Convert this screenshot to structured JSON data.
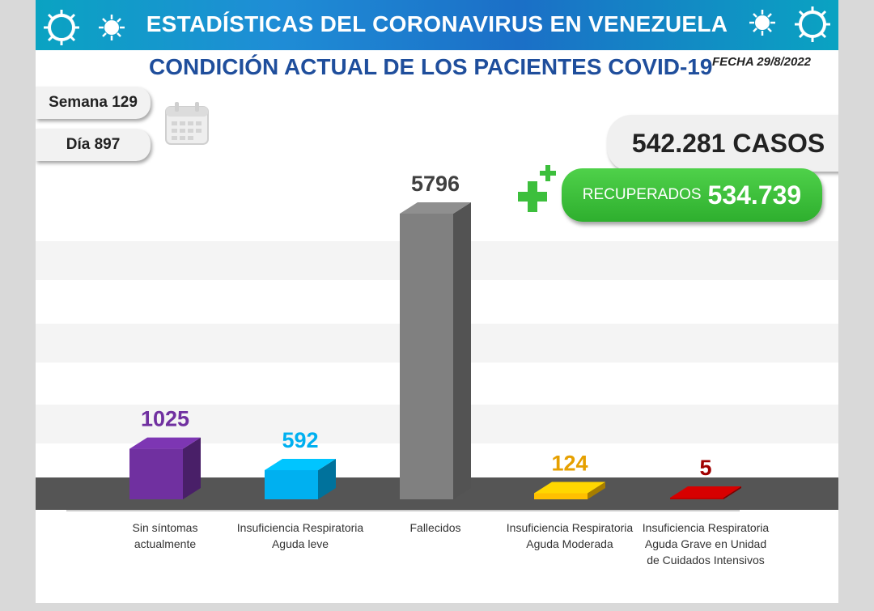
{
  "header": {
    "banner_title": "ESTADÍSTICAS DEL CORONAVIRUS EN VENEZUELA",
    "subtitle": "CONDICIÓN ACTUAL DE LOS PACIENTES COVID-19",
    "fecha": "FECHA 29/8/2022"
  },
  "info": {
    "semana": "Semana 129",
    "dia": "Día 897",
    "casos": "542.281 CASOS",
    "recuperados_label": "RECUPERADOS",
    "recuperados_value": "534.739"
  },
  "icons": [
    "calendar-icon",
    "plus-icon",
    "virus-icon"
  ],
  "chart_data": {
    "type": "bar",
    "categories": [
      "Sin síntomas actualmente",
      "Insuficiencia Respiratoria Aguda leve",
      "Fallecidos",
      "Insuficiencia Respiratoria Aguda Moderada",
      "Insuficiencia Respiratoria Aguda Grave en Unidad de Cuidados Intensivos"
    ],
    "values": [
      1025,
      592,
      5796,
      124,
      5
    ],
    "value_labels": [
      "1025",
      "592",
      "5796",
      "124",
      "5"
    ],
    "bar_colors": [
      "#7030a0",
      "#00b0f0",
      "#808080",
      "#ffc000",
      "#c00000"
    ],
    "label_colors": [
      "#7030a0",
      "#00b0f0",
      "#404040",
      "#e6a000",
      "#a00000"
    ],
    "grid": true
  }
}
